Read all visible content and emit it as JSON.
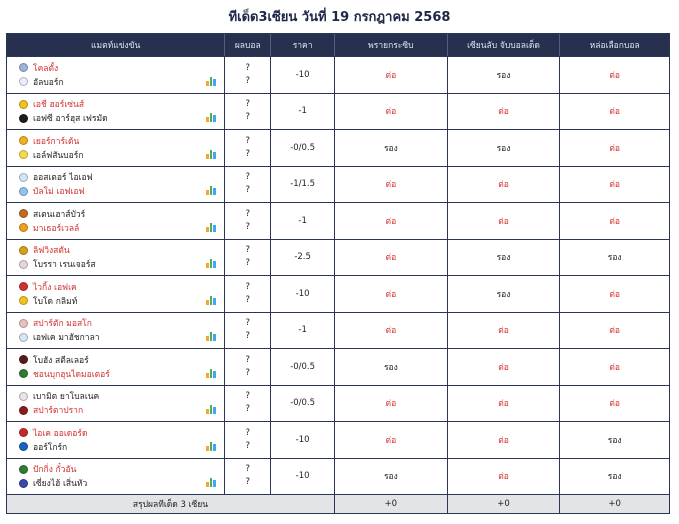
{
  "title": "ทีเด็ด3เซียน วันที่ 19 กรกฎาคม 2568",
  "headers": [
    "แมตท์แข่งขัน",
    "ผลบอล",
    "ราคา",
    "พรายกระซิบ",
    "เซียนลับ จับบอลเด็ด",
    "หล่อเลือกบอล"
  ],
  "colors": {
    "header_bg": "#27314f",
    "accent_red": "#d32f2f",
    "summary_bg": "#e3e4e8"
  },
  "matches": [
    {
      "home": "โคลตั้ง",
      "home_red": true,
      "away": "อัลบอร์ก",
      "away_red": false,
      "home_logo": "#9fb3d9",
      "away_logo": "#e6f0fa",
      "score_home": "?",
      "score_away": "?",
      "price": "-10",
      "t1": "ต่อ",
      "t1_red": true,
      "t2": "รอง",
      "t2_red": false,
      "t3": "ต่อ",
      "t3_red": true
    },
    {
      "home": "เอชี ฮอร์เซ่นส์",
      "home_red": true,
      "away": "เอฟซี อาร์ฮุส เฟรมัด",
      "away_red": false,
      "home_logo": "#f2c21b",
      "away_logo": "#1c1c1c",
      "score_home": "?",
      "score_away": "?",
      "price": "-1",
      "t1": "ต่อ",
      "t1_red": true,
      "t2": "ต่อ",
      "t2_red": true,
      "t3": "ต่อ",
      "t3_red": true
    },
    {
      "home": "เยอร์การ์เด้น",
      "home_red": true,
      "away": "เอล์ฟสันบอร์ก",
      "away_red": false,
      "home_logo": "#f0b020",
      "away_logo": "#f7d94a",
      "score_home": "?",
      "score_away": "?",
      "price": "-0/0.5",
      "t1": "รอง",
      "t1_red": false,
      "t2": "รอง",
      "t2_red": false,
      "t3": "ต่อ",
      "t3_red": true
    },
    {
      "home": "ออสเตอร์ ไอเอฟ",
      "home_red": false,
      "away": "บัลโม่ เอฟเอฟ",
      "away_red": true,
      "home_logo": "#cfe6f7",
      "away_logo": "#8ec5ea",
      "score_home": "?",
      "score_away": "?",
      "price": "-1/1.5",
      "t1": "ต่อ",
      "t1_red": true,
      "t2": "ต่อ",
      "t2_red": true,
      "t3": "ต่อ",
      "t3_red": true
    },
    {
      "home": "สเตนเฮาส์บัวร์",
      "home_red": false,
      "away": "มาเธอร์เวลล์",
      "away_red": true,
      "home_logo": "#c56b1c",
      "away_logo": "#f0a020",
      "score_home": "?",
      "score_away": "?",
      "price": "-1",
      "t1": "ต่อ",
      "t1_red": true,
      "t2": "ต่อ",
      "t2_red": true,
      "t3": "ต่อ",
      "t3_red": true
    },
    {
      "home": "ลิฟวิงสตัน",
      "home_red": true,
      "away": "โบรรา เรนเจอร์ส",
      "away_red": false,
      "home_logo": "#d4a017",
      "away_logo": "#e8d6d6",
      "score_home": "?",
      "score_away": "?",
      "price": "-2.5",
      "t1": "ต่อ",
      "t1_red": true,
      "t2": "รอง",
      "t2_red": false,
      "t3": "รอง",
      "t3_red": false
    },
    {
      "home": "ไวกิ้ง เอฟเค",
      "home_red": true,
      "away": "โบโด กลิมท์",
      "away_red": false,
      "home_logo": "#d32f2f",
      "away_logo": "#f2c21b",
      "score_home": "?",
      "score_away": "?",
      "price": "-10",
      "t1": "ต่อ",
      "t1_red": true,
      "t2": "รอง",
      "t2_red": false,
      "t3": "ต่อ",
      "t3_red": true
    },
    {
      "home": "สปาร์ตัก มอสโก",
      "home_red": true,
      "away": "เอฟเค มาฮัชกาลา",
      "away_red": false,
      "home_logo": "#e8c0c0",
      "away_logo": "#d6e6f2",
      "score_home": "?",
      "score_away": "?",
      "price": "-1",
      "t1": "ต่อ",
      "t1_red": true,
      "t2": "ต่อ",
      "t2_red": true,
      "t3": "ต่อ",
      "t3_red": true
    },
    {
      "home": "โบฮัง สตีลเลอร์",
      "home_red": false,
      "away": "ชอนบุกฮุนไดมอเตอร์",
      "away_red": true,
      "home_logo": "#5a1a1a",
      "away_logo": "#2e7d32",
      "score_home": "?",
      "score_away": "?",
      "price": "-0/0.5",
      "t1": "รอง",
      "t1_red": false,
      "t2": "ต่อ",
      "t2_red": true,
      "t3": "ต่อ",
      "t3_red": true
    },
    {
      "home": "เบามิต ยาโบลเนค",
      "home_red": false,
      "away": "สปาร์ตาปราก",
      "away_red": true,
      "home_logo": "#e6e6e6",
      "away_logo": "#8a1c1c",
      "score_home": "?",
      "score_away": "?",
      "price": "-0/0.5",
      "t1": "ต่อ",
      "t1_red": true,
      "t2": "ต่อ",
      "t2_red": true,
      "t3": "ต่อ",
      "t3_red": true
    },
    {
      "home": "ไอเค ออเดอร์ด",
      "home_red": true,
      "away": "ออร์โกร์ก",
      "away_red": false,
      "home_logo": "#c62828",
      "away_logo": "#1565c0",
      "score_home": "?",
      "score_away": "?",
      "price": "-10",
      "t1": "ต่อ",
      "t1_red": true,
      "t2": "ต่อ",
      "t2_red": true,
      "t3": "รอง",
      "t3_red": false
    },
    {
      "home": "ปักกิ่ง กั๋วอัน",
      "home_red": true,
      "away": "เซี่ยงไฮ้ เสิ่นหัว",
      "away_red": false,
      "home_logo": "#2e7d32",
      "away_logo": "#3949ab",
      "score_home": "?",
      "score_away": "?",
      "price": "-10",
      "t1": "รอง",
      "t1_red": false,
      "t2": "ต่อ",
      "t2_red": true,
      "t3": "รอง",
      "t3_red": false
    }
  ],
  "summary": {
    "label": "สรุปผลทีเด็ด 3 เซียน",
    "t1": "+0",
    "t2": "+0",
    "t3": "+0"
  }
}
